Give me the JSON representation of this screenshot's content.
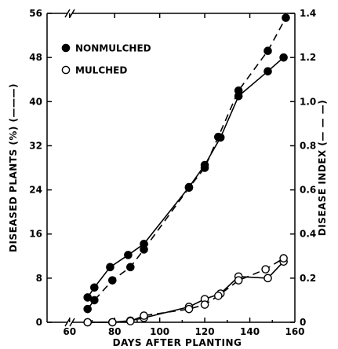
{
  "chart_data": {
    "type": "line",
    "xlabel": "DAYS AFTER PLANTING",
    "ylabel_left": "DISEASED PLANTS (%) (———)",
    "ylabel_right": "DISEASE INDEX (— — —)",
    "xlim": [
      50,
      160
    ],
    "xticks": [
      60,
      80,
      100,
      120,
      140,
      160
    ],
    "ylim_left": [
      0,
      56
    ],
    "yticks_left": [
      0,
      8,
      16,
      24,
      32,
      40,
      48,
      56
    ],
    "ylim_right": [
      0,
      1.4
    ],
    "yticks_right": [
      0,
      0.2,
      0.4,
      0.6,
      0.8,
      1.0,
      1.2,
      1.4
    ],
    "ytick_labels_right": [
      "0",
      "0.2",
      "0.4",
      "0.6",
      "0.8",
      "1.0",
      "1.2",
      "1.4"
    ],
    "axis_break": "x",
    "legend_position": "top-left",
    "series": [
      {
        "name": "NONMULCHED",
        "marker": "filled-circle",
        "diseased_plants_pct": {
          "x": [
            68,
            71,
            78,
            86,
            93,
            113,
            120,
            127,
            135,
            148,
            155
          ],
          "y": [
            4.5,
            6.3,
            10.0,
            12.2,
            14.2,
            24.5,
            28.5,
            33.5,
            41.0,
            45.5,
            48.0
          ]
        },
        "disease_index": {
          "x": [
            68,
            71,
            79,
            87,
            93,
            113,
            120,
            126,
            135,
            148,
            156
          ],
          "y": [
            0.06,
            0.1,
            0.19,
            0.25,
            0.33,
            0.61,
            0.7,
            0.84,
            1.05,
            1.23,
            1.38
          ]
        }
      },
      {
        "name": "MULCHED",
        "marker": "open-circle",
        "diseased_plants_pct": {
          "x": [
            68,
            79,
            87,
            93,
            113,
            120,
            127,
            135,
            148,
            155
          ],
          "y": [
            0.0,
            0.0,
            0.3,
            0.8,
            2.8,
            4.2,
            5.2,
            8.3,
            8.0,
            11.0
          ]
        },
        "disease_index": {
          "x": [
            68,
            79,
            87,
            93,
            113,
            120,
            126,
            135,
            147,
            155
          ],
          "y": [
            0.0,
            0.0,
            0.005,
            0.03,
            0.06,
            0.08,
            0.12,
            0.19,
            0.24,
            0.29
          ]
        }
      }
    ]
  }
}
